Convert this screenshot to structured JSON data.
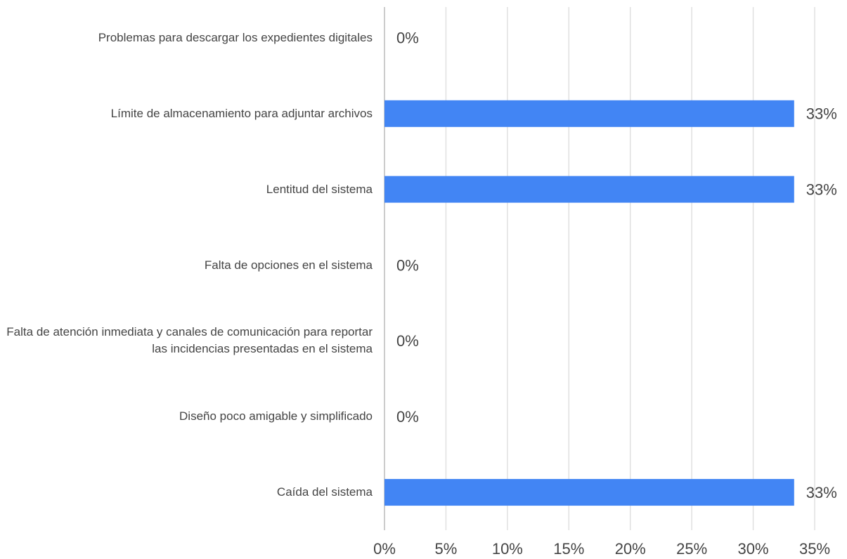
{
  "chart_data": {
    "type": "bar",
    "orientation": "horizontal",
    "categories": [
      "Problemas para descargar los expedientes digitales",
      "Límite de almacenamiento para adjuntar archivos",
      "Lentitud del sistema",
      "Falta de opciones en el sistema",
      "Falta de atención inmediata y canales de comunicación para reportar las incidencias presentadas en el sistema",
      "Diseño poco amigable y simplificado",
      "Caída del sistema"
    ],
    "values": [
      0,
      33.33,
      33.33,
      0,
      0,
      0,
      33.33
    ],
    "value_labels": [
      "0%",
      "33%",
      "33%",
      "0%",
      "0%",
      "0%",
      "33%"
    ],
    "color": "#4285f4",
    "xlim": [
      0,
      35
    ],
    "xticks": [
      {
        "value": 0,
        "label": "0%"
      },
      {
        "value": 5,
        "label": "5%"
      },
      {
        "value": 10,
        "label": "10%"
      },
      {
        "value": 15,
        "label": "15%"
      },
      {
        "value": 20,
        "label": "20%"
      },
      {
        "value": 25,
        "label": "25%"
      },
      {
        "value": 30,
        "label": "30%"
      },
      {
        "value": 35,
        "label": "35%"
      }
    ],
    "grid": true
  }
}
